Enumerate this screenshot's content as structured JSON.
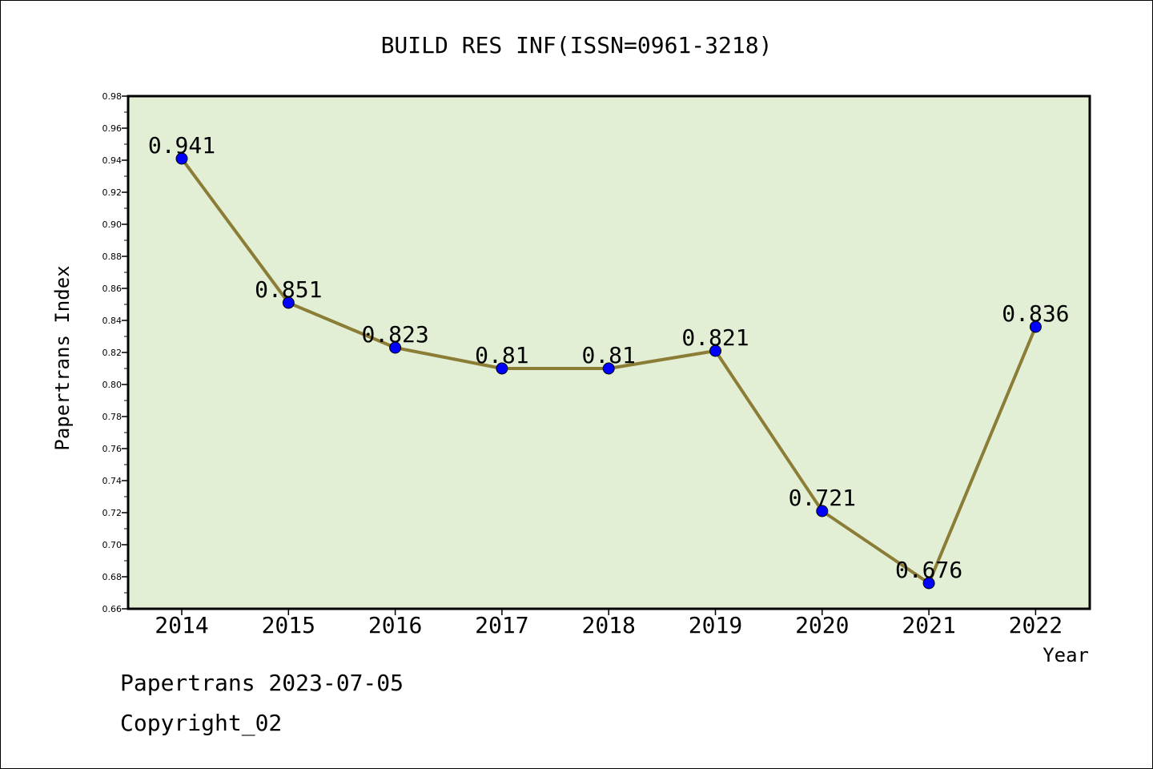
{
  "chart_data": {
    "type": "line",
    "title": "BUILD RES INF(ISSN=0961-3218)",
    "xlabel": "Year",
    "ylabel": "Papertrans Index",
    "categories": [
      "2014",
      "2015",
      "2016",
      "2017",
      "2018",
      "2019",
      "2020",
      "2021",
      "2022"
    ],
    "series": [
      {
        "values": [
          0.941,
          0.851,
          0.823,
          0.81,
          0.81,
          0.821,
          0.721,
          0.676,
          0.836
        ],
        "labels": [
          "0.941",
          "0.851",
          "0.823",
          "0.81",
          "0.81",
          "0.821",
          "0.721",
          "0.676",
          "0.836"
        ]
      }
    ],
    "ylim": [
      0.66,
      0.98
    ],
    "yticks": [
      "0.66",
      "0.68",
      "0.70",
      "0.72",
      "0.74",
      "0.76",
      "0.78",
      "0.80",
      "0.82",
      "0.84",
      "0.86",
      "0.88",
      "0.90",
      "0.92",
      "0.94",
      "0.96",
      "0.98"
    ],
    "grid": false,
    "legend": "none"
  },
  "colors": {
    "plot_background": "#e2efd5",
    "line": "#8b7d36",
    "marker": "#0000ff",
    "axis": "#000000"
  },
  "footer": {
    "date_text": "Papertrans 2023-07-05",
    "copyright_text": "Copyright_02"
  }
}
